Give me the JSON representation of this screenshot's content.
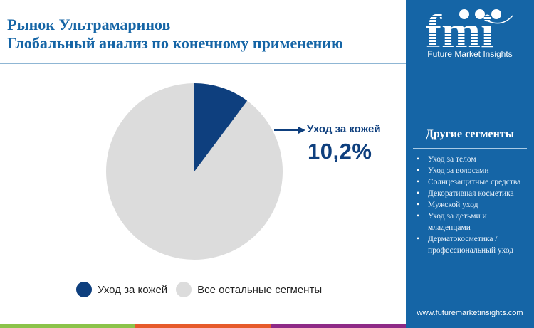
{
  "header": {
    "title_line1": "Рынок Ультрамаринов",
    "title_line2": "Глобальный анализ по конечному применению"
  },
  "callout": {
    "label": "Уход за кожей",
    "value": "10,2%"
  },
  "legend": [
    {
      "label": "Уход за кожей",
      "color": "#0e3f7e"
    },
    {
      "label": "Все остальные сегменты",
      "color": "#dcdcdc"
    }
  ],
  "sidebar": {
    "logo_text": "fmi",
    "logo_subtitle": "Future Market Insights",
    "heading": "Другие сегменты",
    "items": [
      "Уход за телом",
      "Уход за волосами",
      "Солнцезащитные средства",
      "Декоративная косметика",
      "Мужской уход",
      "Уход за детьми и младенцами",
      "Дерматокосметика / профессиональный уход"
    ],
    "url": "www.futuremarketinsights.com"
  },
  "colors": {
    "accent": "#1565a6",
    "highlight_slice": "#0e3f7e",
    "other_slice": "#dcdcdc",
    "stripe": [
      "#8bc34a",
      "#e65a2b",
      "#8e2a86"
    ]
  },
  "chart_data": {
    "type": "pie",
    "title": "Рынок Ультрамаринов — Глобальный анализ по конечному применению",
    "categories": [
      "Уход за кожей",
      "Все остальные сегменты"
    ],
    "values": [
      10.2,
      89.8
    ],
    "unit": "%",
    "annotations": [
      {
        "label": "Уход за кожей",
        "value": "10,2%"
      }
    ],
    "legend_position": "bottom"
  }
}
